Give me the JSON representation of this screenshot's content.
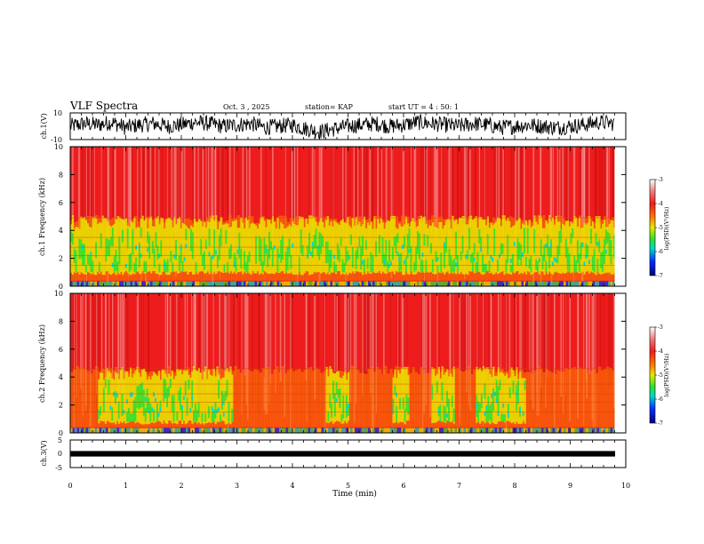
{
  "header": {
    "title": "VLF Spectra",
    "date": "Oct. 3 , 2025",
    "station": "station= KAP",
    "start": "start UT = 4 : 50: 1"
  },
  "chart_data": [
    {
      "type": "line",
      "panel": "ch1-waveform",
      "ylabel": "ch.1(V)",
      "ylim": [
        -10,
        10
      ],
      "y_ticks": [
        "10",
        "-10"
      ],
      "xlim": [
        0,
        10
      ],
      "x": [
        0,
        0.25,
        0.5,
        0.75,
        1,
        1.25,
        1.5,
        1.75,
        2,
        2.25,
        2.5,
        2.75,
        3,
        3.25,
        3.5,
        3.75,
        4,
        4.25,
        4.5,
        4.75,
        5,
        5.25,
        5.5,
        5.75,
        6,
        6.25,
        6.5,
        6.75,
        7,
        7.25,
        7.5,
        7.75,
        8,
        8.25,
        8.5,
        8.75,
        9,
        9.25,
        9.5,
        9.8
      ],
      "values": [
        0,
        2,
        1,
        3,
        -1,
        1,
        2,
        0,
        1,
        3,
        2,
        0,
        1,
        2,
        -1,
        0,
        1,
        -2,
        -4,
        -2,
        0,
        1,
        2,
        0,
        1,
        3,
        2,
        1,
        0,
        2,
        1,
        -1,
        0,
        1,
        0,
        -1,
        0,
        1,
        3,
        2
      ]
    },
    {
      "type": "heatmap",
      "panel": "ch1-spectrogram",
      "ylabel": "ch.1 Frequency (kHz)",
      "ylim": [
        0,
        10
      ],
      "y_ticks": [
        "0",
        "2",
        "4",
        "6",
        "8",
        "10"
      ],
      "xlim": [
        0,
        10
      ],
      "colorbar": {
        "label": "log(PSD)(V²/Hz)",
        "range": [
          -7,
          -3
        ],
        "ticks": [
          "-3",
          "-4",
          "-5",
          "-6",
          "-7"
        ]
      },
      "green_band_khz": [
        1.0,
        4.9
      ],
      "background_level": -4.0
    },
    {
      "type": "heatmap",
      "panel": "ch2-spectrogram",
      "ylabel": "ch.2 Frequency (kHz)",
      "ylim": [
        0,
        10
      ],
      "y_ticks": [
        "0",
        "2",
        "4",
        "6",
        "8",
        "10"
      ],
      "xlim": [
        0,
        10
      ],
      "colorbar": {
        "label": "log(PSD)(V²/Hz)",
        "range": [
          -7,
          -3
        ],
        "ticks": [
          "-3",
          "-4",
          "-5",
          "-6",
          "-7"
        ]
      },
      "green_band_khz": [
        0.8,
        4.6
      ],
      "green_band_segments_min": [
        [
          0.5,
          2.9
        ],
        [
          4.6,
          5.0
        ],
        [
          5.8,
          6.1
        ],
        [
          6.5,
          6.9
        ],
        [
          7.3,
          8.2
        ]
      ],
      "background_level": -4.0
    },
    {
      "type": "line",
      "panel": "ch3-waveform",
      "ylabel": "ch.3(V)",
      "ylim": [
        -5,
        5
      ],
      "y_ticks": [
        "5",
        "0",
        "-5"
      ],
      "xlim": [
        0,
        10
      ],
      "band_v": [
        -0.5,
        0.5
      ]
    }
  ],
  "x_axis": {
    "label": "Time (min)",
    "ticks": [
      "0",
      "1",
      "2",
      "3",
      "4",
      "5",
      "6",
      "7",
      "8",
      "9",
      "10"
    ]
  },
  "colors": {
    "red": "#ee1c1c",
    "orange": "#ff8000",
    "yellow": "#e8e800",
    "green": "#30e030",
    "cyan": "#00d8c8",
    "blue": "#0030ff",
    "dark_blue": "#00007a",
    "black": "#000000"
  }
}
